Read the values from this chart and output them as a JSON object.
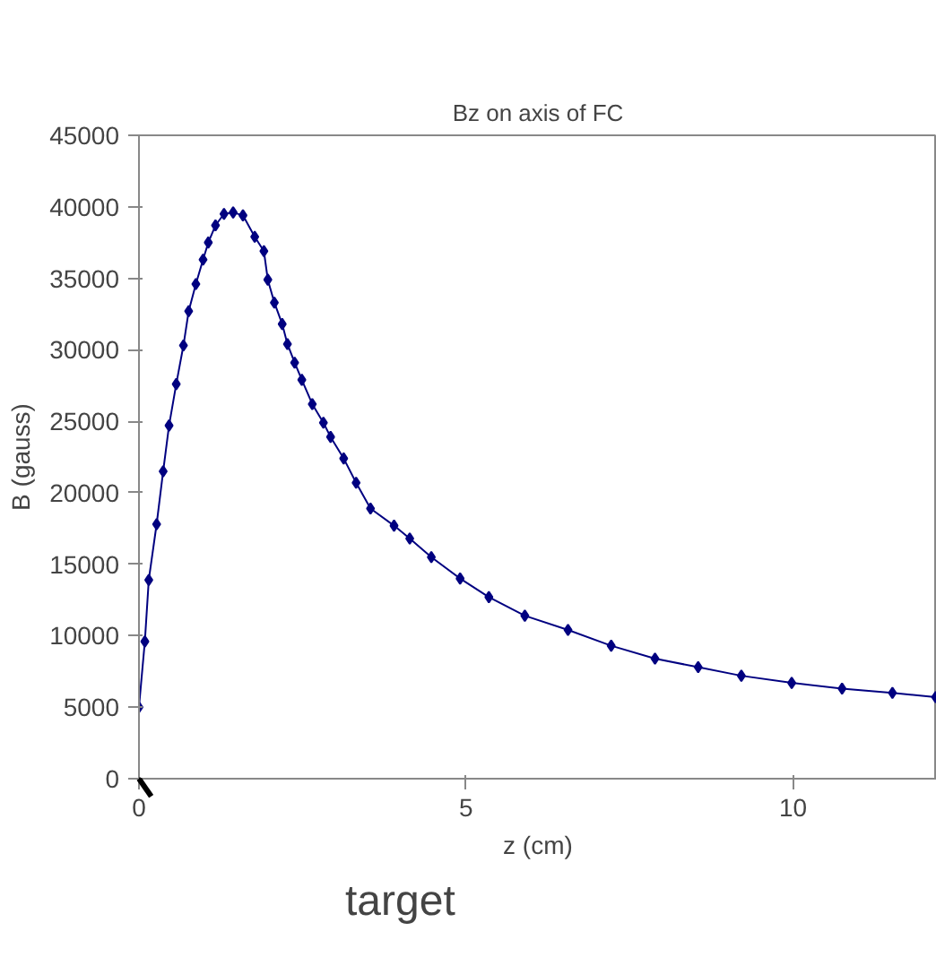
{
  "chart_data": {
    "type": "line",
    "title": "Bz on axis of FC",
    "xlabel": "z (cm)",
    "ylabel": "B (gauss)",
    "x": [
      0,
      0.09,
      0.15,
      0.27,
      0.37,
      0.46,
      0.57,
      0.68,
      0.76,
      0.87,
      0.98,
      1.06,
      1.17,
      1.3,
      1.44,
      1.59,
      1.77,
      1.91,
      1.97,
      2.07,
      2.19,
      2.27,
      2.38,
      2.49,
      2.65,
      2.82,
      2.93,
      3.13,
      3.32,
      3.54,
      3.9,
      4.14,
      4.47,
      4.91,
      5.35,
      5.9,
      6.56,
      7.22,
      7.89,
      8.55,
      9.21,
      9.98,
      10.75,
      11.52,
      12.18
    ],
    "series": [
      {
        "color": "#000080",
        "values": [
          5000,
          9600,
          13900,
          17800,
          21500,
          24700,
          27600,
          30300,
          32700,
          34600,
          36300,
          37500,
          38700,
          39500,
          39600,
          39400,
          37900,
          36900,
          34900,
          33300,
          31800,
          30400,
          29100,
          27900,
          26200,
          24900,
          23900,
          22400,
          20700,
          18900,
          17700,
          16800,
          15500,
          14000,
          12700,
          11400,
          10400,
          9300,
          8400,
          7800,
          7200,
          6700,
          6300,
          6000,
          5700
        ]
      }
    ],
    "xlim": [
      0,
      12.2
    ],
    "xticks": [
      0,
      5,
      10
    ],
    "ylim": [
      0,
      45000
    ],
    "yticks": [
      0,
      5000,
      10000,
      15000,
      20000,
      25000,
      30000,
      35000,
      40000,
      45000
    ],
    "grid": false,
    "marker": "diamond",
    "line_style": "solid",
    "annotations": [
      "target"
    ]
  }
}
